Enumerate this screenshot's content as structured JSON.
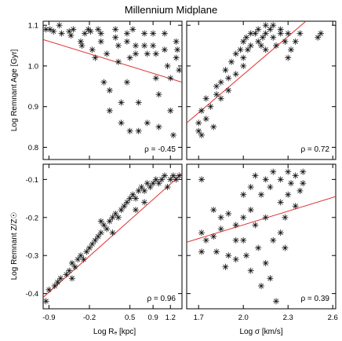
{
  "chart_data": [
    {
      "type": "scatter",
      "panel": "top-left",
      "title": "Millennium Midplane",
      "xlabel": "",
      "ylabel": "Log Remnant Age [Gyr]",
      "xlim": [
        -1.0,
        1.4
      ],
      "ylim": [
        0.77,
        1.11
      ],
      "xticks": [
        -0.9,
        -0.2,
        0.5,
        0.9,
        1.2
      ],
      "yticks": [
        0.8,
        0.9,
        1.0,
        1.1
      ],
      "xtick_labels": [],
      "ytick_labels": [
        "0.8",
        "0.9",
        "1.0",
        "1.1"
      ],
      "annotation": "ρ = -0.45",
      "fit_line": {
        "x": [
          -1.0,
          1.4
        ],
        "y": [
          1.065,
          0.96
        ]
      },
      "points": [
        [
          -0.95,
          1.09
        ],
        [
          -0.88,
          1.09
        ],
        [
          -0.82,
          1.085
        ],
        [
          -0.72,
          1.1
        ],
        [
          -0.68,
          1.08
        ],
        [
          -0.55,
          1.085
        ],
        [
          -0.52,
          1.075
        ],
        [
          -0.48,
          1.09
        ],
        [
          -0.35,
          1.06
        ],
        [
          -0.33,
          1.05
        ],
        [
          -0.28,
          1.08
        ],
        [
          -0.22,
          1.09
        ],
        [
          -0.18,
          1.085
        ],
        [
          -0.15,
          1.04
        ],
        [
          -0.1,
          1.02
        ],
        [
          -0.05,
          1.09
        ],
        [
          0.0,
          1.08
        ],
        [
          0.0,
          1.06
        ],
        [
          0.1,
          1.03
        ],
        [
          0.05,
          0.96
        ],
        [
          0.15,
          0.94
        ],
        [
          0.15,
          0.89
        ],
        [
          0.25,
          1.09
        ],
        [
          0.25,
          1.07
        ],
        [
          0.3,
          1.05
        ],
        [
          0.3,
          1.01
        ],
        [
          0.35,
          0.91
        ],
        [
          0.35,
          0.86
        ],
        [
          0.45,
          1.08
        ],
        [
          0.45,
          1.06
        ],
        [
          0.45,
          0.96
        ],
        [
          0.5,
          1.02
        ],
        [
          0.5,
          0.84
        ],
        [
          0.55,
          1.09
        ],
        [
          0.6,
          1.05
        ],
        [
          0.6,
          1.03
        ],
        [
          0.65,
          0.91
        ],
        [
          0.65,
          0.84
        ],
        [
          0.75,
          1.08
        ],
        [
          0.75,
          1.05
        ],
        [
          0.8,
          1.03
        ],
        [
          0.8,
          0.86
        ],
        [
          0.9,
          1.08
        ],
        [
          0.9,
          1.05
        ],
        [
          0.95,
          1.03
        ],
        [
          0.95,
          0.97
        ],
        [
          1.0,
          0.93
        ],
        [
          1.0,
          0.85
        ],
        [
          1.1,
          1.08
        ],
        [
          1.1,
          1.04
        ],
        [
          1.15,
          1.0
        ],
        [
          1.2,
          0.97
        ],
        [
          1.2,
          0.89
        ],
        [
          1.25,
          0.83
        ],
        [
          1.3,
          1.06
        ],
        [
          1.3,
          1.02
        ],
        [
          1.32,
          1.04
        ],
        [
          1.35,
          0.99
        ]
      ]
    },
    {
      "type": "scatter",
      "panel": "top-right",
      "xlabel": "",
      "ylabel": "",
      "xlim": [
        1.62,
        2.62
      ],
      "ylim": [
        0.77,
        1.11
      ],
      "xticks": [
        1.7,
        2.0,
        2.3,
        2.6
      ],
      "yticks": [
        0.8,
        0.9,
        1.0,
        1.1
      ],
      "annotation": "ρ = 0.72",
      "fit_line": {
        "x": [
          1.62,
          2.42
        ],
        "y": [
          0.86,
          1.11
        ]
      },
      "points": [
        [
          1.7,
          0.84
        ],
        [
          1.7,
          0.86
        ],
        [
          1.72,
          0.89
        ],
        [
          1.72,
          0.83
        ],
        [
          1.75,
          0.87
        ],
        [
          1.75,
          0.92
        ],
        [
          1.78,
          0.9
        ],
        [
          1.8,
          0.85
        ],
        [
          1.82,
          0.93
        ],
        [
          1.82,
          0.95
        ],
        [
          1.85,
          0.96
        ],
        [
          1.85,
          0.92
        ],
        [
          1.88,
          0.99
        ],
        [
          1.9,
          0.97
        ],
        [
          1.9,
          0.94
        ],
        [
          1.92,
          1.01
        ],
        [
          1.95,
          1.03
        ],
        [
          1.95,
          0.98
        ],
        [
          1.98,
          1.04
        ],
        [
          2.0,
          1.06
        ],
        [
          2.0,
          1.02
        ],
        [
          2.02,
          1.07
        ],
        [
          2.03,
          1.04
        ],
        [
          2.05,
          1.08
        ],
        [
          2.05,
          1.05
        ],
        [
          2.08,
          1.08
        ],
        [
          2.1,
          1.06
        ],
        [
          2.1,
          1.09
        ],
        [
          2.12,
          1.05
        ],
        [
          2.13,
          1.07
        ],
        [
          2.15,
          1.08
        ],
        [
          2.15,
          1.1
        ],
        [
          2.18,
          1.09
        ],
        [
          2.2,
          1.1
        ],
        [
          2.2,
          1.07
        ],
        [
          2.22,
          1.05
        ],
        [
          2.25,
          1.08
        ],
        [
          2.25,
          1.09
        ],
        [
          2.28,
          1.06
        ],
        [
          2.3,
          1.08
        ],
        [
          2.3,
          1.02
        ],
        [
          2.32,
          1.04
        ],
        [
          2.35,
          1.06
        ],
        [
          2.38,
          1.08
        ],
        [
          2.5,
          1.07
        ],
        [
          2.52,
          1.08
        ],
        [
          2.0,
          1.0
        ],
        [
          2.15,
          1.04
        ]
      ]
    },
    {
      "type": "scatter",
      "panel": "bottom-left",
      "xlabel": "Log Rₑ [kpc]",
      "ylabel": "Log Remnant Z/Z☉",
      "xlim": [
        -1.0,
        1.4
      ],
      "ylim": [
        -0.44,
        -0.06
      ],
      "xticks": [
        -0.9,
        -0.2,
        0.5,
        0.9,
        1.2
      ],
      "yticks": [
        -0.4,
        -0.3,
        -0.2,
        -0.1
      ],
      "xtick_labels": [
        "-0.9",
        "-0.2",
        "0.5",
        "0.9",
        "1.2"
      ],
      "ytick_labels": [
        "-0.4",
        "-0.3",
        "-0.2",
        "-0.1"
      ],
      "annotation": "ρ = 0.96",
      "fit_line": {
        "x": [
          -1.0,
          1.4
        ],
        "y": [
          -0.41,
          -0.085
        ]
      },
      "points": [
        [
          -0.95,
          -0.42
        ],
        [
          -0.9,
          -0.39
        ],
        [
          -0.8,
          -0.38
        ],
        [
          -0.75,
          -0.37
        ],
        [
          -0.7,
          -0.36
        ],
        [
          -0.6,
          -0.35
        ],
        [
          -0.55,
          -0.34
        ],
        [
          -0.5,
          -0.32
        ],
        [
          -0.45,
          -0.33
        ],
        [
          -0.4,
          -0.31
        ],
        [
          -0.35,
          -0.3
        ],
        [
          -0.3,
          -0.31
        ],
        [
          -0.25,
          -0.29
        ],
        [
          -0.2,
          -0.28
        ],
        [
          -0.15,
          -0.27
        ],
        [
          -0.1,
          -0.26
        ],
        [
          -0.05,
          -0.25
        ],
        [
          0.0,
          -0.24
        ],
        [
          0.05,
          -0.22
        ],
        [
          0.1,
          -0.23
        ],
        [
          0.15,
          -0.21
        ],
        [
          0.2,
          -0.2
        ],
        [
          0.25,
          -0.19
        ],
        [
          0.3,
          -0.2
        ],
        [
          0.35,
          -0.18
        ],
        [
          0.4,
          -0.17
        ],
        [
          0.45,
          -0.16
        ],
        [
          0.5,
          -0.15
        ],
        [
          0.55,
          -0.14
        ],
        [
          0.6,
          -0.15
        ],
        [
          0.65,
          -0.13
        ],
        [
          0.7,
          -0.12
        ],
        [
          0.75,
          -0.13
        ],
        [
          0.8,
          -0.11
        ],
        [
          0.85,
          -0.12
        ],
        [
          0.9,
          -0.11
        ],
        [
          0.95,
          -0.1
        ],
        [
          1.0,
          -0.11
        ],
        [
          1.05,
          -0.1
        ],
        [
          1.1,
          -0.09
        ],
        [
          1.15,
          -0.12
        ],
        [
          1.2,
          -0.1
        ],
        [
          1.25,
          -0.09
        ],
        [
          1.3,
          -0.1
        ],
        [
          1.35,
          -0.09
        ],
        [
          0.0,
          -0.21
        ],
        [
          0.2,
          -0.24
        ],
        [
          0.6,
          -0.18
        ],
        [
          0.75,
          -0.16
        ],
        [
          -0.5,
          -0.36
        ]
      ]
    },
    {
      "type": "scatter",
      "panel": "bottom-right",
      "xlabel": "Log σ [km/s]",
      "ylabel": "",
      "xlim": [
        1.62,
        2.62
      ],
      "ylim": [
        -0.44,
        -0.06
      ],
      "xticks": [
        1.7,
        2.0,
        2.3,
        2.6
      ],
      "yticks": [
        -0.4,
        -0.3,
        -0.2,
        -0.1
      ],
      "xtick_labels": [
        "1.7",
        "2.0",
        "2.3",
        "2.6"
      ],
      "annotation": "ρ = 0.39",
      "fit_line": {
        "x": [
          1.62,
          2.62
        ],
        "y": [
          -0.265,
          -0.145
        ]
      },
      "points": [
        [
          1.72,
          -0.1
        ],
        [
          1.72,
          -0.24
        ],
        [
          1.72,
          -0.29
        ],
        [
          1.75,
          -0.26
        ],
        [
          1.8,
          -0.18
        ],
        [
          1.8,
          -0.25
        ],
        [
          1.82,
          -0.29
        ],
        [
          1.85,
          -0.2
        ],
        [
          1.85,
          -0.23
        ],
        [
          1.88,
          -0.33
        ],
        [
          1.9,
          -0.19
        ],
        [
          1.9,
          -0.3
        ],
        [
          1.95,
          -0.22
        ],
        [
          1.95,
          -0.26
        ],
        [
          1.95,
          -0.31
        ],
        [
          2.0,
          -0.14
        ],
        [
          2.0,
          -0.2
        ],
        [
          2.0,
          -0.26
        ],
        [
          2.02,
          -0.3
        ],
        [
          2.05,
          -0.12
        ],
        [
          2.05,
          -0.18
        ],
        [
          2.05,
          -0.34
        ],
        [
          2.08,
          -0.09
        ],
        [
          2.08,
          -0.22
        ],
        [
          2.1,
          -0.28
        ],
        [
          2.12,
          -0.14
        ],
        [
          2.12,
          -0.38
        ],
        [
          2.15,
          -0.1
        ],
        [
          2.15,
          -0.2
        ],
        [
          2.15,
          -0.32
        ],
        [
          2.18,
          -0.12
        ],
        [
          2.18,
          -0.36
        ],
        [
          2.2,
          -0.08
        ],
        [
          2.2,
          -0.26
        ],
        [
          2.22,
          -0.42
        ],
        [
          2.25,
          -0.1
        ],
        [
          2.25,
          -0.16
        ],
        [
          2.28,
          -0.2
        ],
        [
          2.3,
          -0.08
        ],
        [
          2.3,
          -0.14
        ],
        [
          2.32,
          -0.11
        ],
        [
          2.35,
          -0.09
        ],
        [
          2.35,
          -0.17
        ],
        [
          2.38,
          -0.13
        ],
        [
          2.4,
          -0.08
        ],
        [
          2.4,
          -0.11
        ],
        [
          2.25,
          -0.24
        ],
        [
          2.28,
          -0.28
        ]
      ]
    }
  ]
}
